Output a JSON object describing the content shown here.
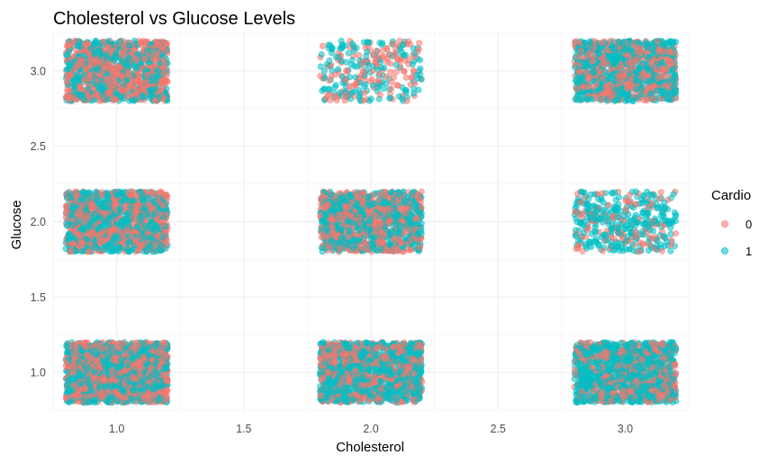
{
  "chart_data": {
    "type": "scatter",
    "title": "Cholesterol vs Glucose Levels",
    "xlabel": "Cholesterol",
    "ylabel": "Glucose",
    "xlim": [
      0.75,
      3.25
    ],
    "ylim": [
      0.75,
      3.25
    ],
    "x_ticks": [
      "1.0",
      "1.5",
      "2.0",
      "2.5",
      "3.0"
    ],
    "y_ticks": [
      "1.0",
      "1.5",
      "2.0",
      "2.5",
      "3.0"
    ],
    "grid": true,
    "jitter": 0.2,
    "legend": {
      "title": "Cardio",
      "position": "right",
      "entries": [
        {
          "label": "0",
          "color": "#F8766D"
        },
        {
          "label": "1",
          "color": "#00BFC4"
        }
      ]
    },
    "clusters": [
      {
        "cholesterol": 1,
        "glucose": 1,
        "count_0": 900,
        "count_1": 900
      },
      {
        "cholesterol": 2,
        "glucose": 1,
        "count_0": 600,
        "count_1": 900
      },
      {
        "cholesterol": 3,
        "glucose": 1,
        "count_0": 500,
        "count_1": 900
      },
      {
        "cholesterol": 1,
        "glucose": 2,
        "count_0": 700,
        "count_1": 700
      },
      {
        "cholesterol": 2,
        "glucose": 2,
        "count_0": 600,
        "count_1": 650
      },
      {
        "cholesterol": 3,
        "glucose": 2,
        "count_0": 120,
        "count_1": 300
      },
      {
        "cholesterol": 1,
        "glucose": 3,
        "count_0": 700,
        "count_1": 550
      },
      {
        "cholesterol": 2,
        "glucose": 3,
        "count_0": 140,
        "count_1": 160
      },
      {
        "cholesterol": 3,
        "glucose": 3,
        "count_0": 500,
        "count_1": 700
      }
    ]
  }
}
